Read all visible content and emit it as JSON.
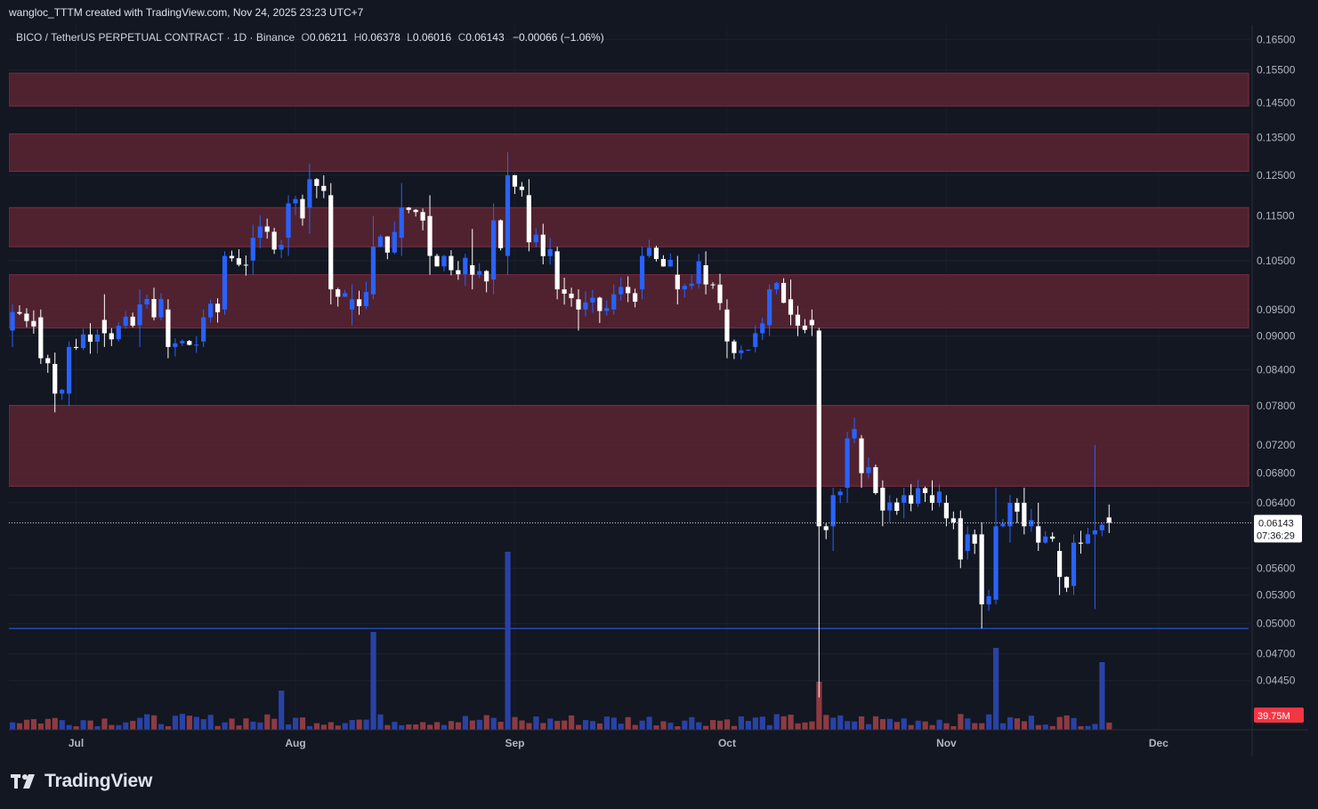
{
  "header": {
    "attribution": "wangloc_TTTM created with TradingView.com, Nov 24, 2025 23:23 UTC+7"
  },
  "legend": {
    "symbol": "BICO / TetherUS PERPETUAL CONTRACT · 1D · Binance",
    "o_label": "O",
    "o_value": "0.06211",
    "h_label": "H",
    "h_value": "0.06378",
    "l_label": "L",
    "l_value": "0.06016",
    "c_label": "C",
    "c_value": "0.06143",
    "change": "−0.00066 (−1.06%)"
  },
  "price_tag": {
    "price": "0.06143",
    "countdown": "07:36:29"
  },
  "volume_tag": {
    "value": "39.75M"
  },
  "branding": {
    "logo_text": "TradingView"
  },
  "colors": {
    "background": "#131722",
    "up": "#2962ff",
    "down": "#ffffff",
    "zone": "#5c2433",
    "vol_up": "#2942a5",
    "vol_down": "#8c3b41"
  },
  "chart_data": {
    "type": "candlestick",
    "scale": "log",
    "xlabel": "",
    "ylabel": "",
    "x_ticks": [
      "Jul",
      "Aug",
      "Sep",
      "Oct",
      "Nov",
      "Dec"
    ],
    "y_ticks": [
      "0.16500",
      "0.15500",
      "0.14500",
      "0.13500",
      "0.12500",
      "0.11500",
      "0.10500",
      "0.09500",
      "0.09000",
      "0.08400",
      "0.07800",
      "0.07200",
      "0.06800",
      "0.06400",
      "0.05600",
      "0.05300",
      "0.05000",
      "0.04700",
      "0.04450"
    ],
    "ylim": [
      0.0425,
      0.1675
    ],
    "date_range": [
      "2025-06-22",
      "2025-11-24"
    ],
    "resistance_zones": [
      [
        0.144,
        0.154
      ],
      [
        0.126,
        0.136
      ],
      [
        0.108,
        0.117
      ],
      [
        0.0915,
        0.102
      ],
      [
        0.0662,
        0.0781
      ]
    ],
    "support_line": 0.0495,
    "last_price": 0.06143,
    "anchors": [
      {
        "date": "2025-06-22",
        "open": 0.091,
        "high": 0.096,
        "low": 0.088,
        "close": 0.0945
      },
      {
        "date": "2025-06-26",
        "open": 0.0935,
        "high": 0.095,
        "low": 0.085,
        "close": 0.086
      },
      {
        "date": "2025-06-28",
        "open": 0.085,
        "high": 0.087,
        "low": 0.077,
        "close": 0.08
      },
      {
        "date": "2025-06-30",
        "open": 0.08,
        "high": 0.089,
        "low": 0.078,
        "close": 0.088
      },
      {
        "date": "2025-07-05",
        "open": 0.093,
        "high": 0.098,
        "low": 0.088,
        "close": 0.0905
      },
      {
        "date": "2025-07-10",
        "open": 0.092,
        "high": 0.099,
        "low": 0.088,
        "close": 0.096
      },
      {
        "date": "2025-07-14",
        "open": 0.095,
        "high": 0.097,
        "low": 0.086,
        "close": 0.088
      },
      {
        "date": "2025-07-19",
        "open": 0.089,
        "high": 0.095,
        "low": 0.088,
        "close": 0.0935
      },
      {
        "date": "2025-07-22",
        "open": 0.095,
        "high": 0.107,
        "low": 0.094,
        "close": 0.106
      },
      {
        "date": "2025-07-26",
        "open": 0.105,
        "high": 0.113,
        "low": 0.102,
        "close": 0.11
      },
      {
        "date": "2025-07-31",
        "open": 0.11,
        "high": 0.12,
        "low": 0.106,
        "close": 0.118
      },
      {
        "date": "2025-08-03",
        "open": 0.117,
        "high": 0.128,
        "low": 0.111,
        "close": 0.124
      },
      {
        "date": "2025-08-06",
        "open": 0.12,
        "high": 0.123,
        "low": 0.096,
        "close": 0.099
      },
      {
        "date": "2025-08-09",
        "open": 0.095,
        "high": 0.1,
        "low": 0.092,
        "close": 0.097
      },
      {
        "date": "2025-08-12",
        "open": 0.098,
        "high": 0.115,
        "low": 0.097,
        "close": 0.108
      },
      {
        "date": "2025-08-16",
        "open": 0.11,
        "high": 0.123,
        "low": 0.106,
        "close": 0.117
      },
      {
        "date": "2025-08-20",
        "open": 0.115,
        "high": 0.12,
        "low": 0.102,
        "close": 0.106
      },
      {
        "date": "2025-08-26",
        "open": 0.104,
        "high": 0.112,
        "low": 0.099,
        "close": 0.102
      },
      {
        "date": "2025-08-29",
        "open": 0.101,
        "high": 0.118,
        "low": 0.098,
        "close": 0.114
      },
      {
        "date": "2025-08-31",
        "open": 0.106,
        "high": 0.131,
        "low": 0.102,
        "close": 0.125
      },
      {
        "date": "2025-09-03",
        "open": 0.12,
        "high": 0.124,
        "low": 0.107,
        "close": 0.109
      },
      {
        "date": "2025-09-07",
        "open": 0.107,
        "high": 0.108,
        "low": 0.097,
        "close": 0.099
      },
      {
        "date": "2025-09-10",
        "open": 0.097,
        "high": 0.099,
        "low": 0.091,
        "close": 0.095
      },
      {
        "date": "2025-09-15",
        "open": 0.095,
        "high": 0.1,
        "low": 0.094,
        "close": 0.098
      },
      {
        "date": "2025-09-19",
        "open": 0.099,
        "high": 0.108,
        "low": 0.097,
        "close": 0.106
      },
      {
        "date": "2025-09-24",
        "open": 0.102,
        "high": 0.106,
        "low": 0.096,
        "close": 0.099
      },
      {
        "date": "2025-09-28",
        "open": 0.104,
        "high": 0.107,
        "low": 0.098,
        "close": 0.1
      },
      {
        "date": "2025-10-01",
        "open": 0.095,
        "high": 0.097,
        "low": 0.086,
        "close": 0.089
      },
      {
        "date": "2025-10-05",
        "open": 0.088,
        "high": 0.092,
        "low": 0.087,
        "close": 0.0905
      },
      {
        "date": "2025-10-07",
        "open": 0.092,
        "high": 0.1,
        "low": 0.09,
        "close": 0.099
      },
      {
        "date": "2025-10-10",
        "open": 0.097,
        "high": 0.101,
        "low": 0.092,
        "close": 0.094
      },
      {
        "date": "2025-10-13",
        "open": 0.093,
        "high": 0.095,
        "low": 0.09,
        "close": 0.092
      },
      {
        "date": "2025-10-14",
        "open": 0.091,
        "high": 0.0915,
        "low": 0.043,
        "close": 0.061
      },
      {
        "date": "2025-10-16",
        "open": 0.061,
        "high": 0.066,
        "low": 0.058,
        "close": 0.065
      },
      {
        "date": "2025-10-18",
        "open": 0.066,
        "high": 0.074,
        "low": 0.064,
        "close": 0.073
      },
      {
        "date": "2025-10-20",
        "open": 0.073,
        "high": 0.0735,
        "low": 0.066,
        "close": 0.068
      },
      {
        "date": "2025-10-23",
        "open": 0.066,
        "high": 0.067,
        "low": 0.061,
        "close": 0.063
      },
      {
        "date": "2025-10-26",
        "open": 0.064,
        "high": 0.066,
        "low": 0.062,
        "close": 0.065
      },
      {
        "date": "2025-10-30",
        "open": 0.065,
        "high": 0.067,
        "low": 0.063,
        "close": 0.064
      },
      {
        "date": "2025-11-01",
        "open": 0.064,
        "high": 0.065,
        "low": 0.061,
        "close": 0.062
      },
      {
        "date": "2025-11-03",
        "open": 0.062,
        "high": 0.063,
        "low": 0.056,
        "close": 0.057
      },
      {
        "date": "2025-11-04",
        "open": 0.058,
        "high": 0.061,
        "low": 0.057,
        "close": 0.06
      },
      {
        "date": "2025-11-06",
        "open": 0.06,
        "high": 0.0615,
        "low": 0.0495,
        "close": 0.052
      },
      {
        "date": "2025-11-08",
        "open": 0.0525,
        "high": 0.066,
        "low": 0.052,
        "close": 0.061
      },
      {
        "date": "2025-11-10",
        "open": 0.061,
        "high": 0.065,
        "low": 0.059,
        "close": 0.064
      },
      {
        "date": "2025-11-12",
        "open": 0.064,
        "high": 0.066,
        "low": 0.06,
        "close": 0.061
      },
      {
        "date": "2025-11-14",
        "open": 0.061,
        "high": 0.064,
        "low": 0.058,
        "close": 0.059
      },
      {
        "date": "2025-11-17",
        "open": 0.058,
        "high": 0.059,
        "low": 0.053,
        "close": 0.055
      },
      {
        "date": "2025-11-19",
        "open": 0.054,
        "high": 0.06,
        "low": 0.053,
        "close": 0.059
      },
      {
        "date": "2025-11-22",
        "open": 0.06,
        "high": 0.072,
        "low": 0.0515,
        "close": 0.0605
      },
      {
        "date": "2025-11-24",
        "open": 0.06211,
        "high": 0.06378,
        "low": 0.06016,
        "close": 0.06143
      }
    ],
    "volume_spikes": [
      {
        "date": "2025-07-30",
        "value": 22
      },
      {
        "date": "2025-08-12",
        "value": 55
      },
      {
        "date": "2025-08-31",
        "value": 100
      },
      {
        "date": "2025-10-14",
        "value": 27
      },
      {
        "date": "2025-11-08",
        "value": 46
      },
      {
        "date": "2025-11-23",
        "value": 38
      }
    ],
    "volume_last": 39.75
  }
}
